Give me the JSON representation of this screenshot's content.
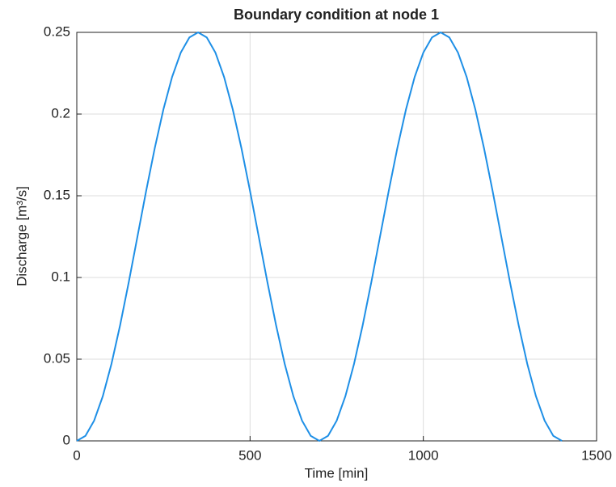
{
  "chart_data": {
    "type": "line",
    "title": "Boundary condition at node 1",
    "x_label": "Time [min]",
    "y_label": "Discharge [m³/s]",
    "x": [
      0,
      25,
      50,
      75,
      100,
      125,
      150,
      175,
      200,
      225,
      250,
      275,
      300,
      325,
      350,
      375,
      400,
      425,
      450,
      475,
      500,
      525,
      550,
      575,
      600,
      625,
      650,
      675,
      700,
      725,
      750,
      775,
      800,
      825,
      850,
      875,
      900,
      925,
      950,
      975,
      1000,
      1025,
      1050,
      1075,
      1100,
      1125,
      1150,
      1175,
      1200,
      1225,
      1250,
      1275,
      1300,
      1325,
      1350,
      1375,
      1400
    ],
    "series": [
      {
        "color": "#1e8fe6",
        "values": [
          0,
          0.0031,
          0.0124,
          0.0273,
          0.0471,
          0.0708,
          0.0972,
          0.125,
          0.1528,
          0.1792,
          0.2029,
          0.2227,
          0.2376,
          0.2469,
          0.25,
          0.2469,
          0.2376,
          0.2227,
          0.2029,
          0.1792,
          0.1528,
          0.125,
          0.0972,
          0.0708,
          0.0471,
          0.0273,
          0.0124,
          0.0031,
          0,
          0.0031,
          0.0124,
          0.0273,
          0.0471,
          0.0708,
          0.0972,
          0.125,
          0.1528,
          0.1792,
          0.2029,
          0.2227,
          0.2376,
          0.2469,
          0.25,
          0.2469,
          0.2376,
          0.2227,
          0.2029,
          0.1792,
          0.1528,
          0.125,
          0.0972,
          0.0708,
          0.0471,
          0.0273,
          0.0124,
          0.0031,
          0
        ]
      }
    ],
    "xlim": [
      0,
      1500
    ],
    "xticks": [
      0,
      500,
      1000,
      1500
    ],
    "ylim": [
      0,
      0.25
    ],
    "yticks": [
      0,
      0.05,
      0.1,
      0.15,
      0.2,
      0.25
    ],
    "grid": true
  }
}
